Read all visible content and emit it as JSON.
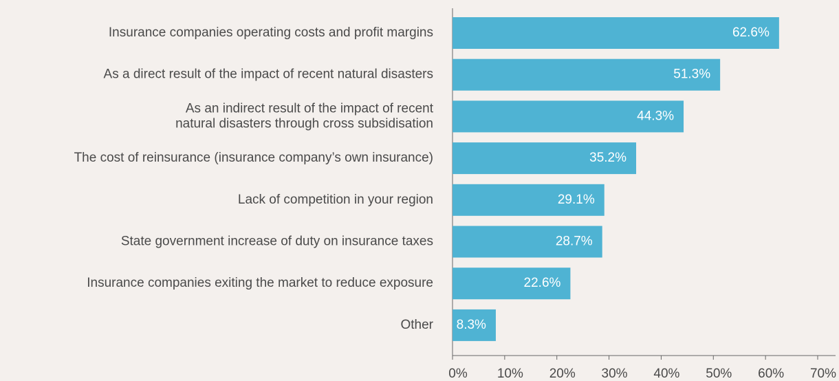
{
  "chart_data": {
    "type": "bar",
    "orientation": "horizontal",
    "categories": [
      "Insurance companies operating costs and profit margins",
      "As a direct result of the impact of recent natural disasters",
      "As an indirect result of the impact of recent\nnatural disasters through cross subsidisation",
      "The cost of reinsurance (insurance company’s own insurance)",
      "Lack of competition in your region",
      "State government increase of duty on insurance taxes",
      "Insurance companies exiting the market to reduce exposure",
      "Other"
    ],
    "values": [
      62.6,
      51.3,
      44.3,
      35.2,
      29.1,
      28.7,
      22.6,
      8.3
    ],
    "value_labels": [
      "62.6%",
      "51.3%",
      "44.3%",
      "35.2%",
      "29.1%",
      "28.7%",
      "22.6%",
      "8.3%"
    ],
    "color": "#4fb3d3",
    "xlim": [
      0,
      70
    ],
    "xticks": [
      {
        "value": 0,
        "label": "0%"
      },
      {
        "value": 10,
        "label": "10%"
      },
      {
        "value": 20,
        "label": "20%"
      },
      {
        "value": 30,
        "label": "30%"
      },
      {
        "value": 40,
        "label": "40%"
      },
      {
        "value": 50,
        "label": "50%"
      },
      {
        "value": 60,
        "label": "60%"
      },
      {
        "value": 70,
        "label": "70%"
      }
    ],
    "grid": false
  }
}
